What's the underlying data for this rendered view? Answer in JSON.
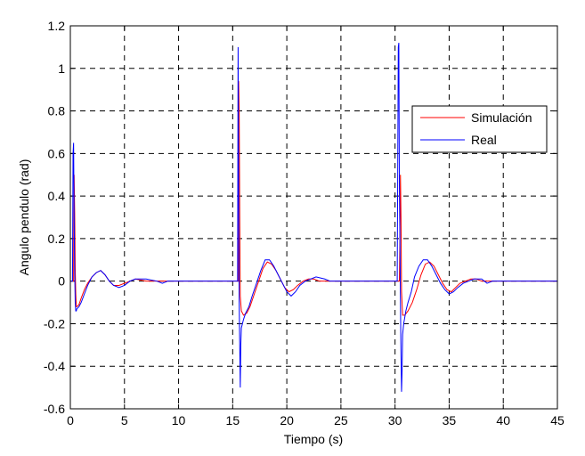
{
  "chart_data": {
    "type": "line",
    "title": "",
    "xlabel": "Tiempo (s)",
    "ylabel": "Angulo pendulo (rad)",
    "xlim": [
      0,
      45
    ],
    "ylim": [
      -0.6,
      1.2
    ],
    "xticks": [
      0,
      5,
      10,
      15,
      20,
      25,
      30,
      35,
      40,
      45
    ],
    "yticks": [
      -0.6,
      -0.4,
      -0.2,
      0,
      0.2,
      0.4,
      0.6,
      0.8,
      1,
      1.2
    ],
    "xtick_labels": [
      "0",
      "5",
      "10",
      "15",
      "20",
      "25",
      "30",
      "35",
      "40",
      "45"
    ],
    "ytick_labels": [
      "-0.6",
      "-0.4",
      "-0.2",
      "0",
      "0.2",
      "0.4",
      "0.6",
      "0.8",
      "1",
      "1.2"
    ],
    "grid": true,
    "legend_position": "upper-right",
    "series": [
      {
        "name": "Simulación",
        "color": "#ff0000",
        "x": [
          0,
          0.3,
          0.32,
          0.35,
          0.4,
          0.45,
          0.5,
          0.55,
          0.6,
          0.8,
          1.0,
          1.3,
          1.6,
          2.0,
          2.4,
          2.8,
          3.2,
          3.6,
          4.0,
          4.5,
          5.0,
          5.5,
          6.0,
          7.0,
          8.0,
          10.0,
          12.0,
          14.0,
          15.3,
          15.5,
          15.55,
          15.6,
          15.65,
          15.7,
          15.8,
          16.0,
          16.3,
          16.6,
          17.0,
          17.4,
          17.8,
          18.2,
          18.6,
          19.0,
          19.4,
          19.8,
          20.2,
          20.6,
          21.0,
          21.5,
          22.0,
          22.5,
          23.0,
          24.0,
          25.0,
          27.0,
          29.0,
          30.2,
          30.4,
          30.45,
          30.5,
          30.55,
          30.6,
          30.7,
          30.9,
          31.2,
          31.6,
          32.0,
          32.4,
          32.8,
          33.2,
          33.6,
          34.0,
          34.4,
          34.8,
          35.2,
          35.6,
          36.0,
          36.5,
          37.0,
          37.5,
          38.0,
          39.0,
          40.0,
          42.0,
          45.0
        ],
        "y": [
          0,
          0,
          0.32,
          0.5,
          0.32,
          0.06,
          -0.06,
          -0.12,
          -0.12,
          -0.11,
          -0.08,
          -0.04,
          -0.01,
          0.02,
          0.04,
          0.05,
          0.03,
          0.0,
          -0.02,
          -0.02,
          -0.01,
          0.0,
          0.01,
          0.0,
          0.0,
          0.0,
          0.0,
          0.0,
          0.0,
          0.0,
          0.94,
          0.8,
          0.3,
          -0.07,
          -0.14,
          -0.16,
          -0.15,
          -0.12,
          -0.06,
          0.0,
          0.06,
          0.09,
          0.08,
          0.05,
          0.01,
          -0.03,
          -0.05,
          -0.04,
          -0.02,
          0.0,
          0.01,
          0.01,
          0.0,
          0.0,
          0.0,
          0.0,
          0.0,
          0.0,
          0.0,
          0.22,
          0.5,
          0.3,
          -0.05,
          -0.16,
          -0.16,
          -0.14,
          -0.1,
          -0.04,
          0.03,
          0.08,
          0.09,
          0.07,
          0.03,
          -0.01,
          -0.04,
          -0.05,
          -0.03,
          -0.01,
          0.0,
          0.01,
          0.01,
          0.0,
          0.0,
          0.0,
          0.0,
          0.0
        ]
      },
      {
        "name": "Real",
        "color": "#0000ff",
        "x": [
          0,
          0.2,
          0.25,
          0.3,
          0.35,
          0.4,
          0.45,
          0.5,
          0.55,
          0.6,
          0.8,
          1.0,
          1.3,
          1.6,
          2.0,
          2.4,
          2.8,
          3.2,
          3.6,
          4.0,
          4.5,
          5.0,
          5.5,
          6.0,
          7.0,
          8.0,
          8.5,
          9.0,
          10.0,
          12.0,
          14.0,
          15.3,
          15.45,
          15.5,
          15.55,
          15.6,
          15.65,
          15.7,
          15.75,
          15.8,
          15.9,
          16.0,
          16.2,
          16.5,
          16.8,
          17.2,
          17.6,
          18.0,
          18.4,
          18.8,
          19.2,
          19.6,
          20.0,
          20.4,
          20.8,
          21.2,
          21.7,
          22.2,
          22.7,
          23.5,
          24.0,
          25.0,
          27.0,
          29.0,
          30.2,
          30.3,
          30.35,
          30.4,
          30.45,
          30.5,
          30.55,
          30.6,
          30.65,
          30.7,
          30.8,
          30.9,
          31.0,
          31.2,
          31.5,
          31.8,
          32.2,
          32.6,
          33.0,
          33.4,
          33.8,
          34.2,
          34.6,
          35.0,
          35.4,
          35.8,
          36.3,
          36.8,
          37.3,
          38.0,
          38.5,
          39.0,
          40.0,
          42.0,
          45.0
        ],
        "y": [
          0,
          0,
          0.6,
          0.65,
          0.3,
          0.05,
          -0.1,
          -0.14,
          -0.14,
          -0.13,
          -0.12,
          -0.1,
          -0.06,
          -0.02,
          0.02,
          0.04,
          0.05,
          0.03,
          0.0,
          -0.02,
          -0.03,
          -0.02,
          0.0,
          0.01,
          0.01,
          0.0,
          -0.01,
          0.0,
          0.0,
          0.0,
          0.0,
          0.0,
          0.0,
          1.1,
          0.4,
          -0.1,
          -0.3,
          -0.5,
          -0.3,
          -0.22,
          -0.2,
          -0.18,
          -0.15,
          -0.12,
          -0.07,
          -0.01,
          0.05,
          0.1,
          0.1,
          0.07,
          0.03,
          -0.01,
          -0.05,
          -0.07,
          -0.05,
          -0.02,
          0.0,
          0.01,
          0.02,
          0.01,
          0.0,
          0.0,
          0.0,
          0.0,
          0.0,
          1.1,
          1.12,
          0.45,
          0.2,
          -0.1,
          -0.35,
          -0.52,
          -0.42,
          -0.25,
          -0.2,
          -0.17,
          -0.14,
          -0.1,
          -0.05,
          0.02,
          0.07,
          0.1,
          0.1,
          0.07,
          0.03,
          -0.01,
          -0.04,
          -0.06,
          -0.05,
          -0.03,
          -0.01,
          0.0,
          0.01,
          0.01,
          -0.01,
          0.0,
          0.0,
          0.0,
          0.0
        ]
      }
    ]
  }
}
